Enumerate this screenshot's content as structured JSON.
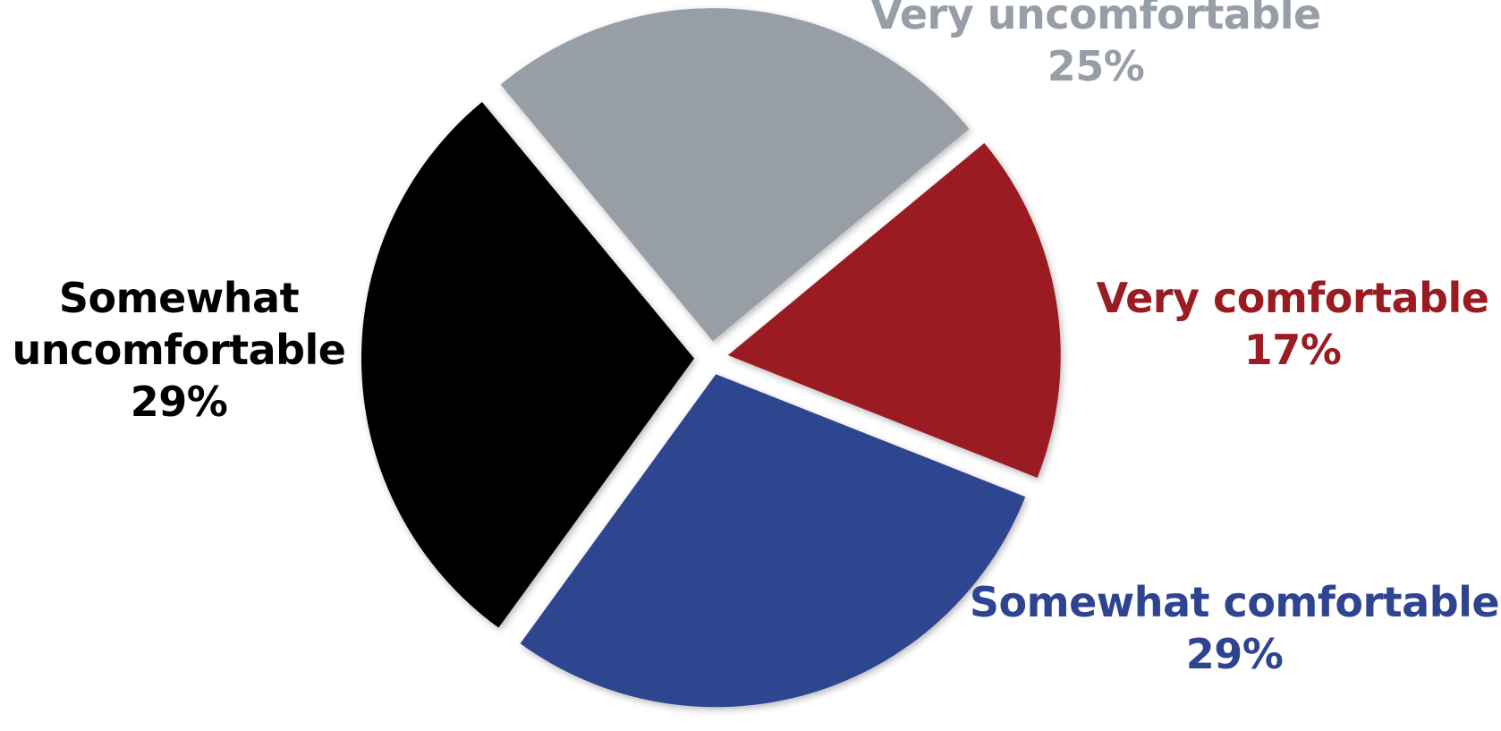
{
  "chart_data": {
    "type": "pie",
    "title": "",
    "unit": "%",
    "slices": [
      {
        "name": "Very comfortable",
        "value": 17,
        "label_lines": [
          "Very comfortable"
        ],
        "percent_label": "17%",
        "color": "#9a1c22"
      },
      {
        "name": "Somewhat comfortable",
        "value": 29,
        "label_lines": [
          "Somewhat comfortable"
        ],
        "percent_label": "29%",
        "color": "#2e4490"
      },
      {
        "name": "Somewhat uncomfortable",
        "value": 29,
        "label_lines": [
          "Somewhat",
          "uncomfortable"
        ],
        "percent_label": "29%",
        "color": "#000000"
      },
      {
        "name": "Very uncomfortable",
        "value": 25,
        "label_lines": [
          "Very uncomfortable"
        ],
        "percent_label": "25%",
        "color": "#979ea6"
      }
    ]
  }
}
